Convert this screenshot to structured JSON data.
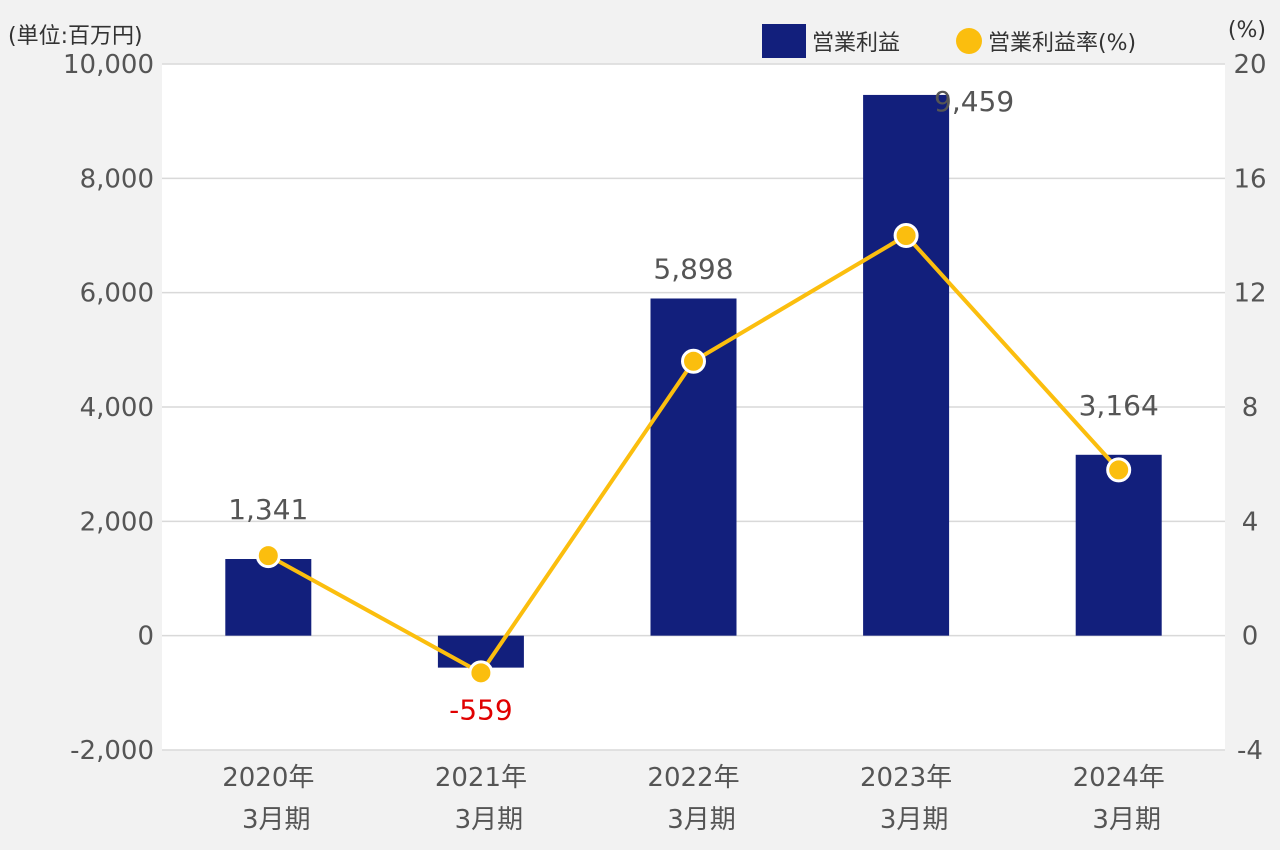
{
  "unit_left": "(単位:百万円)",
  "unit_right": "(%)",
  "colors": {
    "bar": "#121f7c",
    "line": "#fbbe0e",
    "negative_label": "#e00000",
    "grid": "#d9d9d9",
    "text": "#555555"
  },
  "chart_data": {
    "type": "bar",
    "categories": [
      [
        "2020年",
        "3月期"
      ],
      [
        "2021年",
        "3月期"
      ],
      [
        "2022年",
        "3月期"
      ],
      [
        "2023年",
        "3月期"
      ],
      [
        "2024年",
        "3月期"
      ]
    ],
    "series": [
      {
        "name": "営業利益",
        "type": "bar",
        "axis": "left",
        "values": [
          1341,
          -559,
          5898,
          9459,
          3164
        ],
        "labels": [
          "1,341",
          "-559",
          "5,898",
          "9,459",
          "3,164"
        ]
      },
      {
        "name": "営業利益率(%)",
        "type": "line",
        "axis": "right",
        "values": [
          2.8,
          -1.3,
          9.6,
          14.0,
          5.8
        ]
      }
    ],
    "ylim_left": [
      -2000,
      10000
    ],
    "yticks_left": [
      {
        "v": -2000,
        "label": "-2,000"
      },
      {
        "v": 0,
        "label": "0"
      },
      {
        "v": 2000,
        "label": "2,000"
      },
      {
        "v": 4000,
        "label": "4,000"
      },
      {
        "v": 6000,
        "label": "6,000"
      },
      {
        "v": 8000,
        "label": "8,000"
      },
      {
        "v": 10000,
        "label": "10,000"
      }
    ],
    "ylim_right": [
      -4,
      20
    ],
    "yticks_right": [
      {
        "v": -4,
        "label": "-4"
      },
      {
        "v": 0,
        "label": "0"
      },
      {
        "v": 4,
        "label": "4"
      },
      {
        "v": 8,
        "label": "8"
      },
      {
        "v": 12,
        "label": "12"
      },
      {
        "v": 16,
        "label": "16"
      },
      {
        "v": 20,
        "label": "20"
      }
    ],
    "grid": true,
    "legend_position": "top-right"
  }
}
